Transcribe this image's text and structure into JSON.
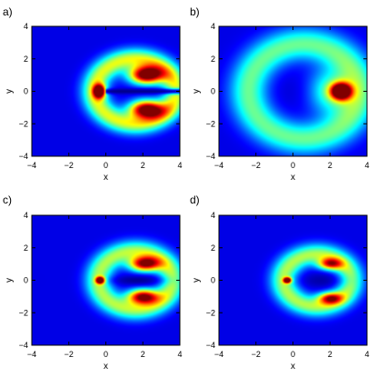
{
  "chart_data": [
    {
      "type": "heatmap",
      "panel_label": "a)",
      "xlabel": "x",
      "ylabel": "y",
      "xlim": [
        -4,
        4
      ],
      "ylim": [
        -4,
        4
      ],
      "xticks": [
        -4,
        -2,
        0,
        2,
        4
      ],
      "yticks": [
        -4,
        -2,
        0,
        2,
        4
      ],
      "grid": false,
      "colormap": "jet",
      "features": [
        {
          "kind": "ring",
          "cx": 1.6,
          "cy": 0,
          "rx": 2.2,
          "ry": 2.0,
          "width": 0.45,
          "intensity": 0.5
        },
        {
          "kind": "lobe",
          "cx": 2.2,
          "cy": 1.0,
          "rx": 1.0,
          "ry": 0.6,
          "intensity": 1.0
        },
        {
          "kind": "lobe",
          "cx": 2.2,
          "cy": -1.1,
          "rx": 1.0,
          "ry": 0.6,
          "intensity": 0.95
        },
        {
          "kind": "lobe",
          "cx": -0.35,
          "cy": 0,
          "rx": 0.35,
          "ry": 0.45,
          "intensity": 0.9
        },
        {
          "kind": "slit",
          "x0": 0.0,
          "x1": 4.0,
          "cy": 0,
          "half_width": 0.12,
          "depth": 0.9
        }
      ]
    },
    {
      "type": "heatmap",
      "panel_label": "b)",
      "xlabel": "x",
      "ylabel": "y",
      "xlim": [
        -4,
        4
      ],
      "ylim": [
        -4,
        4
      ],
      "xticks": [
        -4,
        -2,
        0,
        2,
        4
      ],
      "yticks": [
        -4,
        -2,
        0,
        2,
        4
      ],
      "grid": false,
      "colormap": "jet",
      "features": [
        {
          "kind": "ring",
          "cx": 0.6,
          "cy": 0,
          "rx": 3.0,
          "ry": 2.9,
          "width": 0.7,
          "intensity": 0.38
        },
        {
          "kind": "lobe",
          "cx": 2.6,
          "cy": 0,
          "rx": 0.6,
          "ry": 0.55,
          "intensity": 1.0
        },
        {
          "kind": "lobe",
          "cx": 2.0,
          "cy": 0,
          "rx": 1.3,
          "ry": 1.5,
          "intensity": 0.35
        },
        {
          "kind": "hole",
          "cx": 0.2,
          "cy": 0,
          "rx": 1.2,
          "ry": 1.3,
          "depth": 0.2
        }
      ]
    },
    {
      "type": "heatmap",
      "panel_label": "c)",
      "xlabel": "x",
      "ylabel": "y",
      "xlim": [
        -4,
        4
      ],
      "ylim": [
        -4,
        4
      ],
      "xticks": [
        -4,
        -2,
        0,
        2,
        4
      ],
      "yticks": [
        -4,
        -2,
        0,
        2,
        4
      ],
      "grid": false,
      "colormap": "jet",
      "features": [
        {
          "kind": "ring",
          "cx": 1.6,
          "cy": 0,
          "rx": 2.0,
          "ry": 1.8,
          "width": 0.45,
          "intensity": 0.45
        },
        {
          "kind": "lobe",
          "cx": 2.1,
          "cy": 1.0,
          "rx": 0.9,
          "ry": 0.5,
          "intensity": 0.85
        },
        {
          "kind": "lobe",
          "cx": 2.0,
          "cy": -1.0,
          "rx": 0.9,
          "ry": 0.5,
          "intensity": 0.85
        },
        {
          "kind": "lobe",
          "cx": -0.3,
          "cy": 0,
          "rx": 0.25,
          "ry": 0.22,
          "intensity": 1.0
        },
        {
          "kind": "hole",
          "cx": 1.7,
          "cy": 0,
          "rx": 1.6,
          "ry": 0.35,
          "depth": 0.8
        }
      ]
    },
    {
      "type": "heatmap",
      "panel_label": "d)",
      "xlabel": "x",
      "ylabel": "y",
      "xlim": [
        -4,
        4
      ],
      "ylim": [
        -4,
        4
      ],
      "xticks": [
        -4,
        -2,
        0,
        2,
        4
      ],
      "yticks": [
        -4,
        -2,
        0,
        2,
        4
      ],
      "grid": false,
      "colormap": "jet",
      "features": [
        {
          "kind": "ring",
          "cx": 1.3,
          "cy": 0,
          "rx": 1.8,
          "ry": 1.6,
          "width": 0.45,
          "intensity": 0.45
        },
        {
          "kind": "lobe",
          "cx": 2.0,
          "cy": 1.0,
          "rx": 0.7,
          "ry": 0.4,
          "intensity": 0.6
        },
        {
          "kind": "lobe",
          "cx": 2.0,
          "cy": -1.1,
          "rx": 0.7,
          "ry": 0.4,
          "intensity": 0.6
        },
        {
          "kind": "lobe",
          "cx": -0.3,
          "cy": 0,
          "rx": 0.22,
          "ry": 0.18,
          "intensity": 1.0
        },
        {
          "kind": "hole",
          "cx": 1.6,
          "cy": 0,
          "rx": 1.4,
          "ry": 0.55,
          "depth": 0.6
        }
      ]
    }
  ]
}
